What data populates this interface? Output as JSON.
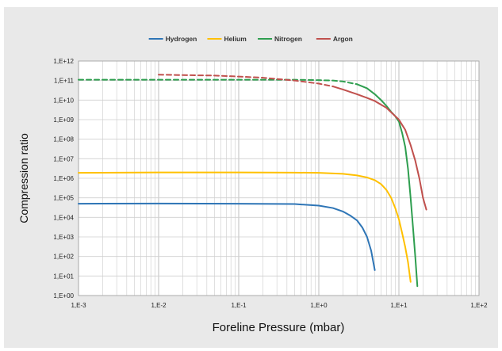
{
  "chart_data": {
    "type": "line",
    "title": "",
    "xlabel": "Foreline Pressure (mbar)",
    "ylabel": "Compression ratio",
    "x_scale": "log",
    "y_scale": "log",
    "xlim": [
      0.001,
      100
    ],
    "ylim": [
      1,
      1000000000000
    ],
    "grid": true,
    "legend_position": "top-center",
    "x_tick_labels": [
      "1,E-3",
      "1,E-2",
      "1,E-1",
      "1,E+0",
      "1,E+1",
      "1,E+2"
    ],
    "x_tick_values": [
      0.001,
      0.01,
      0.1,
      1,
      10,
      100
    ],
    "y_tick_labels": [
      "1,E+00",
      "1,E+01",
      "1,E+02",
      "1,E+03",
      "1,E+04",
      "1,E+05",
      "1,E+06",
      "1,E+07",
      "1,E+08",
      "1,E+09",
      "1,E+10",
      "1,E+11",
      "1,E+12"
    ],
    "y_tick_values": [
      1,
      10,
      100,
      1000,
      10000,
      100000,
      1000000,
      10000000,
      100000000,
      1000000000,
      10000000000,
      100000000000,
      1000000000000
    ],
    "series": [
      {
        "name": "Hydrogen",
        "color": "#2e75b6",
        "segments": [
          {
            "style": "solid",
            "points": [
              [
                0.001,
                50000
              ],
              [
                0.01,
                51000
              ],
              [
                0.1,
                50000
              ],
              [
                0.5,
                48000
              ],
              [
                1,
                40000
              ],
              [
                1.5,
                30000
              ],
              [
                2,
                20000
              ],
              [
                2.5,
                12000
              ],
              [
                3,
                7000
              ],
              [
                3.5,
                3000
              ],
              [
                4,
                1000
              ],
              [
                4.5,
                200
              ],
              [
                5,
                20
              ]
            ]
          }
        ]
      },
      {
        "name": "Helium",
        "color": "#ffc000",
        "segments": [
          {
            "style": "solid",
            "points": [
              [
                0.001,
                1900000
              ],
              [
                0.01,
                2000000
              ],
              [
                0.1,
                2000000
              ],
              [
                0.5,
                1950000
              ],
              [
                1,
                1900000
              ],
              [
                2,
                1700000
              ],
              [
                3,
                1400000
              ],
              [
                4,
                1100000
              ],
              [
                5,
                800000
              ],
              [
                6,
                500000
              ],
              [
                7,
                250000
              ],
              [
                8,
                100000
              ],
              [
                9,
                30000
              ],
              [
                10,
                8000
              ],
              [
                11,
                1500
              ],
              [
                12,
                300
              ],
              [
                13,
                50
              ],
              [
                14,
                5
              ]
            ]
          }
        ]
      },
      {
        "name": "Nitrogen",
        "color": "#2e9e4f",
        "segments": [
          {
            "style": "dashed",
            "points": [
              [
                0.001,
                110000000000
              ],
              [
                0.01,
                110000000000
              ],
              [
                0.1,
                110000000000
              ],
              [
                0.5,
                110000000000
              ],
              [
                1,
                105000000000
              ],
              [
                1.5,
                100000000000
              ],
              [
                2,
                90000000000
              ],
              [
                3,
                65000000000
              ]
            ]
          },
          {
            "style": "solid",
            "points": [
              [
                3,
                65000000000
              ],
              [
                4,
                40000000000
              ],
              [
                5,
                20000000000
              ],
              [
                6,
                10000000000
              ],
              [
                7,
                5000000000
              ],
              [
                8,
                2500000000
              ],
              [
                9,
                1500000000
              ],
              [
                10,
                800000000
              ],
              [
                11,
                200000000
              ],
              [
                12,
                40000000
              ],
              [
                13,
                3000000
              ],
              [
                14,
                100000
              ],
              [
                15,
                3000
              ],
              [
                16,
                100
              ],
              [
                17,
                3
              ]
            ]
          }
        ]
      },
      {
        "name": "Argon",
        "color": "#c0504d",
        "segments": [
          {
            "style": "dashed",
            "points": [
              [
                0.01,
                200000000000
              ],
              [
                0.02,
                190000000000
              ],
              [
                0.05,
                180000000000
              ],
              [
                0.1,
                160000000000
              ],
              [
                0.2,
                140000000000
              ],
              [
                0.3,
                120000000000
              ],
              [
                0.5,
                100000000000
              ],
              [
                1,
                70000000000
              ],
              [
                1.5,
                50000000000
              ]
            ]
          },
          {
            "style": "solid",
            "points": [
              [
                1.5,
                50000000000
              ],
              [
                2,
                35000000000
              ],
              [
                3,
                20000000000
              ],
              [
                4,
                13000000000
              ],
              [
                5,
                9000000000
              ],
              [
                7,
                4000000000
              ],
              [
                10,
                1000000000
              ],
              [
                12,
                300000000
              ],
              [
                14,
                50000000
              ],
              [
                16,
                8000000
              ],
              [
                18,
                1000000
              ],
              [
                20,
                100000
              ],
              [
                22,
                25000
              ]
            ]
          }
        ]
      }
    ]
  }
}
